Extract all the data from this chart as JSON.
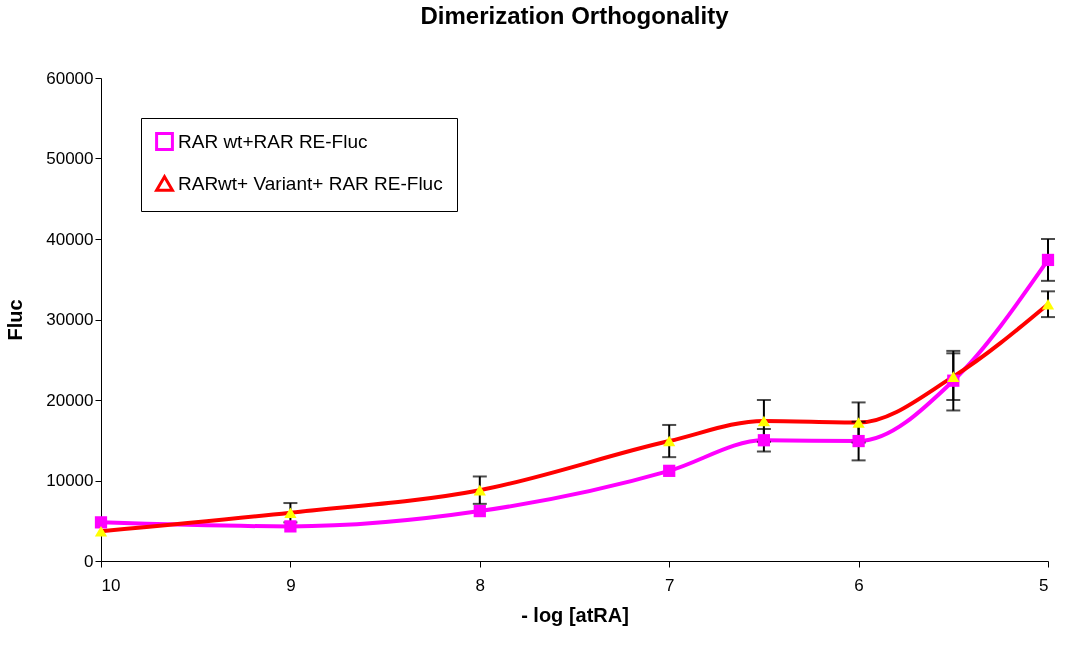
{
  "chart_data": {
    "type": "line",
    "title": "Dimerization Orthogonality",
    "xlabel": "- log [atRA]",
    "ylabel": "Fluc",
    "x": [
      10,
      9,
      8,
      7,
      6.5,
      6,
      5.5,
      5
    ],
    "xlim": [
      10,
      5
    ],
    "xticks": [
      10,
      9,
      8,
      7,
      6,
      5
    ],
    "ylim": [
      0,
      60000
    ],
    "yticks": [
      0,
      10000,
      20000,
      30000,
      40000,
      50000,
      60000
    ],
    "series": [
      {
        "name": "RAR wt+RAR RE-Fluc",
        "color": "#ff00ff",
        "marker": "square",
        "values": [
          4800,
          4300,
          6200,
          11200,
          15000,
          14900,
          22400,
          37400
        ],
        "errors": [
          null,
          null,
          null,
          null,
          1400,
          2400,
          3700,
          2600
        ]
      },
      {
        "name": "RARwt+ Variant+ RAR RE-Fluc",
        "color": "#ff0000",
        "marker": "triangle",
        "values": [
          3700,
          6000,
          8800,
          14900,
          17400,
          17200,
          22900,
          31900
        ],
        "errors": [
          null,
          1200,
          1700,
          2000,
          2600,
          2500,
          2900,
          1600
        ]
      }
    ],
    "grid": false,
    "legend": "top left",
    "line_style": "solid"
  }
}
